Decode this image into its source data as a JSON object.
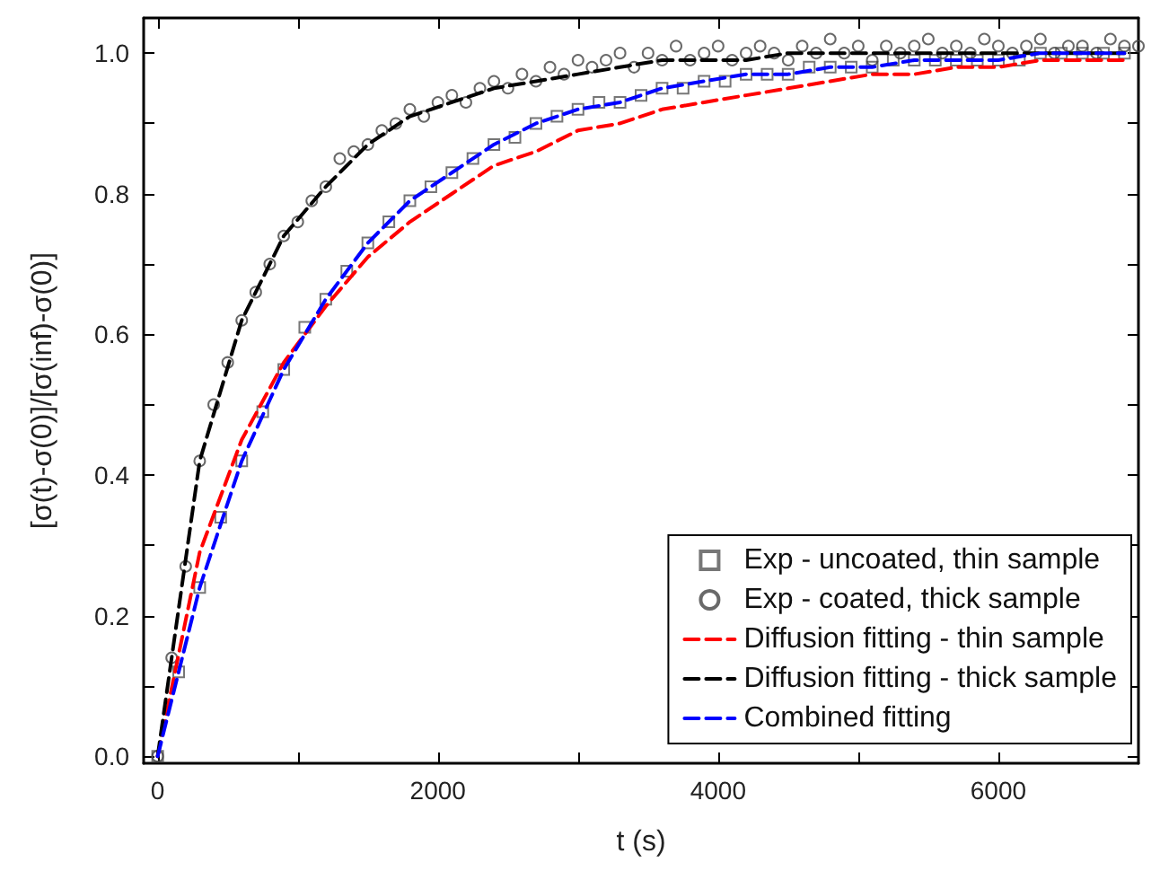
{
  "chart_data": {
    "type": "scatter",
    "xlabel": "t (s)",
    "ylabel": "[σ(t)-σ(0)]/[σ(inf)-σ(0)]",
    "xlim": [
      -100,
      7000
    ],
    "ylim": [
      -0.01,
      1.05
    ],
    "xticks": [
      0,
      {
        "value": 1000,
        "label": null
      },
      2000,
      {
        "value": 3000,
        "label": null
      },
      4000,
      {
        "value": 5000,
        "label": null
      },
      6000
    ],
    "yticks": [
      {
        "value": 0,
        "label": "0.0"
      },
      {
        "value": 0.1,
        "label": null
      },
      0.2,
      {
        "value": 0.3,
        "label": null
      },
      0.4,
      {
        "value": 0.5,
        "label": null
      },
      0.6,
      {
        "value": 0.7,
        "label": null
      },
      0.8,
      {
        "value": 0.9,
        "label": null
      },
      {
        "value": 1,
        "label": "1.0"
      }
    ],
    "grid": false,
    "legend": "bottom right",
    "series": [
      {
        "name": "Exp - uncoated, thin sample",
        "marker": "square",
        "color": "#555555",
        "x": [
          0,
          150,
          300,
          450,
          600,
          750,
          900,
          1050,
          1200,
          1350,
          1500,
          1650,
          1800,
          1950,
          2100,
          2250,
          2400,
          2550,
          2700,
          2850,
          3000,
          3150,
          3300,
          3450,
          3600,
          3750,
          3900,
          4050,
          4200,
          4350,
          4500,
          4650,
          4800,
          4950,
          5100,
          5250,
          5400,
          5550,
          5700,
          5850,
          6000,
          6150,
          6300,
          6450,
          6600,
          6750,
          6900
        ],
        "values": [
          0.0,
          0.12,
          0.24,
          0.34,
          0.42,
          0.49,
          0.55,
          0.61,
          0.65,
          0.69,
          0.73,
          0.76,
          0.79,
          0.81,
          0.83,
          0.85,
          0.87,
          0.88,
          0.9,
          0.91,
          0.92,
          0.93,
          0.93,
          0.94,
          0.95,
          0.95,
          0.96,
          0.96,
          0.97,
          0.97,
          0.97,
          0.98,
          0.98,
          0.98,
          0.98,
          0.99,
          0.99,
          0.99,
          0.99,
          0.99,
          0.99,
          0.99,
          1.0,
          1.0,
          1.0,
          1.0,
          1.0
        ]
      },
      {
        "name": "Exp - coated, thick sample",
        "marker": "circle",
        "color": "#444444",
        "x": [
          0,
          100,
          200,
          300,
          400,
          500,
          600,
          700,
          800,
          900,
          1000,
          1100,
          1200,
          1300,
          1400,
          1500,
          1600,
          1700,
          1800,
          1900,
          2000,
          2100,
          2200,
          2300,
          2400,
          2500,
          2600,
          2700,
          2800,
          2900,
          3000,
          3100,
          3200,
          3300,
          3400,
          3500,
          3600,
          3700,
          3800,
          3900,
          4000,
          4100,
          4200,
          4300,
          4400,
          4500,
          4600,
          4700,
          4800,
          4900,
          5000,
          5100,
          5200,
          5300,
          5400,
          5500,
          5600,
          5700,
          5800,
          5900,
          6000,
          6100,
          6200,
          6300,
          6400,
          6500,
          6600,
          6700,
          6800,
          6900,
          7000
        ],
        "values": [
          0.0,
          0.14,
          0.27,
          0.42,
          0.5,
          0.56,
          0.62,
          0.66,
          0.7,
          0.74,
          0.76,
          0.79,
          0.81,
          0.85,
          0.86,
          0.87,
          0.89,
          0.9,
          0.92,
          0.91,
          0.93,
          0.94,
          0.93,
          0.95,
          0.96,
          0.95,
          0.97,
          0.96,
          0.98,
          0.97,
          0.99,
          0.98,
          0.99,
          1.0,
          0.98,
          1.0,
          0.99,
          1.01,
          0.99,
          1.0,
          1.01,
          0.99,
          1.0,
          1.01,
          1.0,
          0.99,
          1.01,
          1.0,
          1.02,
          1.0,
          1.01,
          0.99,
          1.01,
          1.0,
          1.01,
          1.02,
          1.0,
          1.01,
          1.0,
          1.02,
          1.01,
          1.0,
          1.01,
          1.02,
          1.0,
          1.01,
          1.01,
          1.0,
          1.02,
          1.01,
          1.01
        ]
      },
      {
        "name": "Diffusion fitting - thin sample",
        "type": "line",
        "marker": "none",
        "line_style": "dashed",
        "color": "#ff0000",
        "x": [
          0,
          300,
          600,
          900,
          1200,
          1500,
          1800,
          2100,
          2400,
          2700,
          3000,
          3300,
          3600,
          3900,
          4200,
          4500,
          4800,
          5100,
          5400,
          5700,
          6000,
          6300,
          6600,
          6900
        ],
        "values": [
          0,
          0.29,
          0.45,
          0.56,
          0.64,
          0.71,
          0.76,
          0.8,
          0.84,
          0.86,
          0.89,
          0.9,
          0.92,
          0.93,
          0.94,
          0.95,
          0.96,
          0.97,
          0.97,
          0.98,
          0.98,
          0.99,
          0.99,
          0.99
        ]
      },
      {
        "name": "Diffusion fitting - thick sample",
        "type": "line",
        "marker": "none",
        "line_style": "dashed",
        "color": "#000000",
        "x": [
          0,
          300,
          600,
          900,
          1200,
          1500,
          1800,
          2100,
          2400,
          2700,
          3000,
          3300,
          3600,
          3900,
          4200,
          4500,
          4800,
          5100,
          5400,
          5700,
          6000,
          6300,
          6600,
          6900
        ],
        "values": [
          0,
          0.42,
          0.62,
          0.74,
          0.81,
          0.87,
          0.91,
          0.93,
          0.95,
          0.96,
          0.97,
          0.98,
          0.99,
          0.99,
          0.99,
          1.0,
          1.0,
          1.0,
          1.0,
          1.0,
          1.0,
          1.0,
          1.0,
          1.0
        ]
      },
      {
        "name": "Combined fitting",
        "type": "line",
        "marker": "none",
        "line_style": "dashed",
        "color": "#0000ff",
        "x": [
          0,
          300,
          600,
          900,
          1200,
          1500,
          1800,
          2100,
          2400,
          2700,
          3000,
          3300,
          3600,
          3900,
          4200,
          4500,
          4800,
          5100,
          5400,
          5700,
          6000,
          6300,
          6600,
          6900
        ],
        "values": [
          0,
          0.24,
          0.42,
          0.55,
          0.65,
          0.73,
          0.79,
          0.83,
          0.87,
          0.9,
          0.92,
          0.93,
          0.95,
          0.96,
          0.97,
          0.97,
          0.98,
          0.98,
          0.99,
          0.99,
          0.99,
          1.0,
          1.0,
          1.0
        ]
      }
    ]
  }
}
